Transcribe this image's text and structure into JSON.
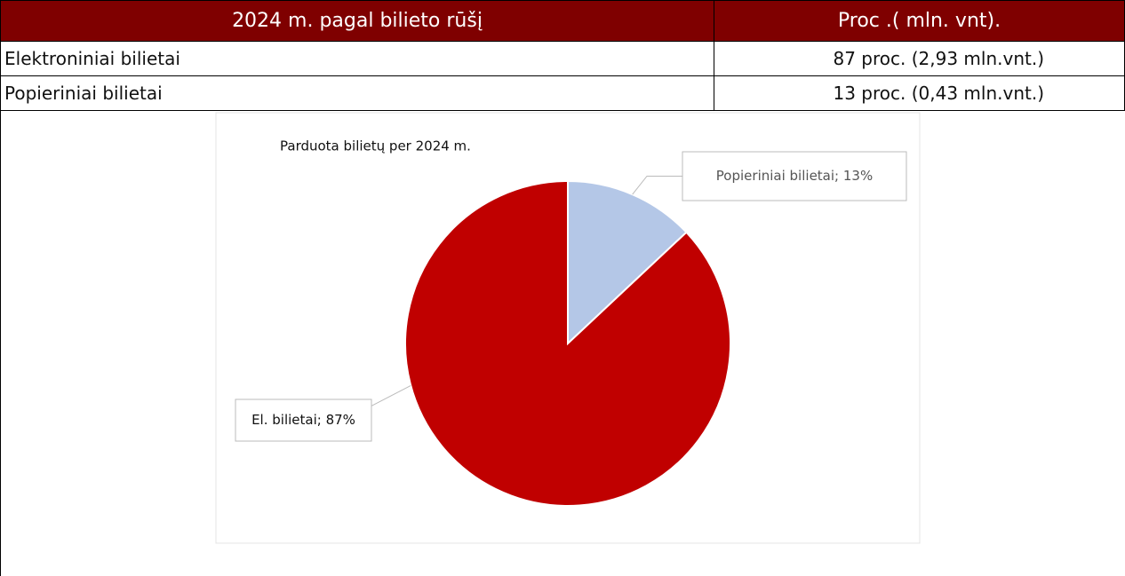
{
  "table": {
    "header": [
      "2024 m. pagal bilieto rūšį",
      "Proc .( mln. vnt)."
    ],
    "rows": [
      [
        "Elektroniniai bilietai",
        "87 proc. (2,93 mln.vnt.)"
      ],
      [
        "Popieriniai bilietai",
        "13 proc. (0,43 mln.vnt.)"
      ]
    ]
  },
  "chart_data": {
    "type": "pie",
    "title": "Parduota bilietų per 2024 m.",
    "values": [
      13,
      87
    ],
    "value_labels": [
      "Popieriniai bilietai; 13%",
      "El. bilietai; 87%"
    ],
    "colors": [
      "#b4c7e7",
      "#c00000"
    ]
  }
}
